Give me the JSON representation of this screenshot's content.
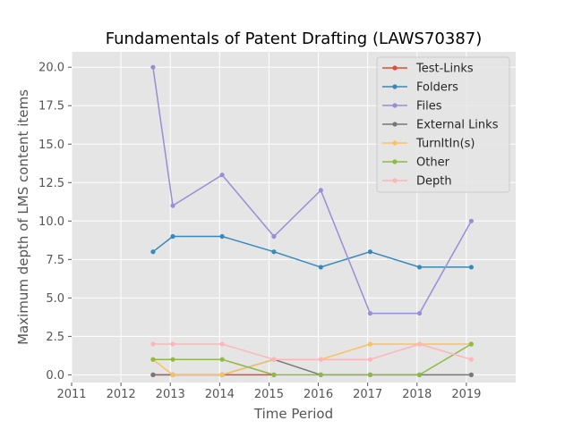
{
  "chart_data": {
    "type": "line",
    "title": "Fundamentals of Patent Drafting (LAWS70387)",
    "xlabel": "Time Period",
    "ylabel": "Maximum depth of LMS content items",
    "xlim": [
      2011,
      2020
    ],
    "ylim": [
      -0.5,
      21.0
    ],
    "xticks": [
      2011,
      2012,
      2013,
      2014,
      2015,
      2016,
      2017,
      2018,
      2019
    ],
    "yticks": [
      0.0,
      2.5,
      5.0,
      7.5,
      10.0,
      12.5,
      15.0,
      17.5,
      20.0
    ],
    "xtick_labels": [
      "2011",
      "2012",
      "2013",
      "2014",
      "2015",
      "2016",
      "2017",
      "2018",
      "2019"
    ],
    "ytick_labels": [
      "0.0",
      "2.5",
      "5.0",
      "7.5",
      "10.0",
      "12.5",
      "15.0",
      "17.5",
      "20.0"
    ],
    "grid": true,
    "legend_position": "top-right",
    "series": [
      {
        "name": "Test-Links",
        "color": "#E24A33",
        "x": [
          2012.65,
          2013.05,
          2014.05,
          2015.1
        ],
        "y": [
          0,
          0,
          0,
          0
        ]
      },
      {
        "name": "Folders",
        "color": "#348ABD",
        "x": [
          2012.65,
          2013.05,
          2014.05,
          2015.1,
          2016.05,
          2017.05,
          2018.05,
          2019.1
        ],
        "y": [
          8,
          9,
          9,
          8,
          7,
          8,
          7,
          7
        ]
      },
      {
        "name": "Files",
        "color": "#988ED5",
        "x": [
          2012.65,
          2013.05,
          2014.05,
          2015.1,
          2016.05,
          2017.05,
          2018.05,
          2019.1
        ],
        "y": [
          20,
          11,
          13,
          9,
          12,
          4,
          4,
          10
        ]
      },
      {
        "name": "External Links",
        "color": "#777777",
        "x": [
          2012.65,
          2013.05,
          2014.05,
          2015.1,
          2016.05,
          2017.05,
          2018.05,
          2019.1
        ],
        "y": [
          0,
          0,
          0,
          1,
          0,
          0,
          0,
          0
        ]
      },
      {
        "name": "TurnItIn(s)",
        "color": "#FBC15E",
        "x": [
          2012.65,
          2013.05,
          2014.05,
          2015.1,
          2016.05,
          2017.05,
          2018.05,
          2019.1
        ],
        "y": [
          1,
          0,
          0,
          1,
          1,
          2,
          2,
          2
        ]
      },
      {
        "name": "Other",
        "color": "#8EBA42",
        "x": [
          2012.65,
          2013.05,
          2014.05,
          2015.1,
          2016.05,
          2017.05,
          2018.05,
          2019.1
        ],
        "y": [
          1,
          1,
          1,
          0,
          0,
          0,
          0,
          2
        ]
      },
      {
        "name": "Depth",
        "color": "#FFB5B8",
        "x": [
          2012.65,
          2013.05,
          2014.05,
          2015.1,
          2016.05,
          2017.05,
          2018.05,
          2019.1
        ],
        "y": [
          2,
          2,
          2,
          1,
          1,
          1,
          2,
          1
        ]
      }
    ]
  }
}
